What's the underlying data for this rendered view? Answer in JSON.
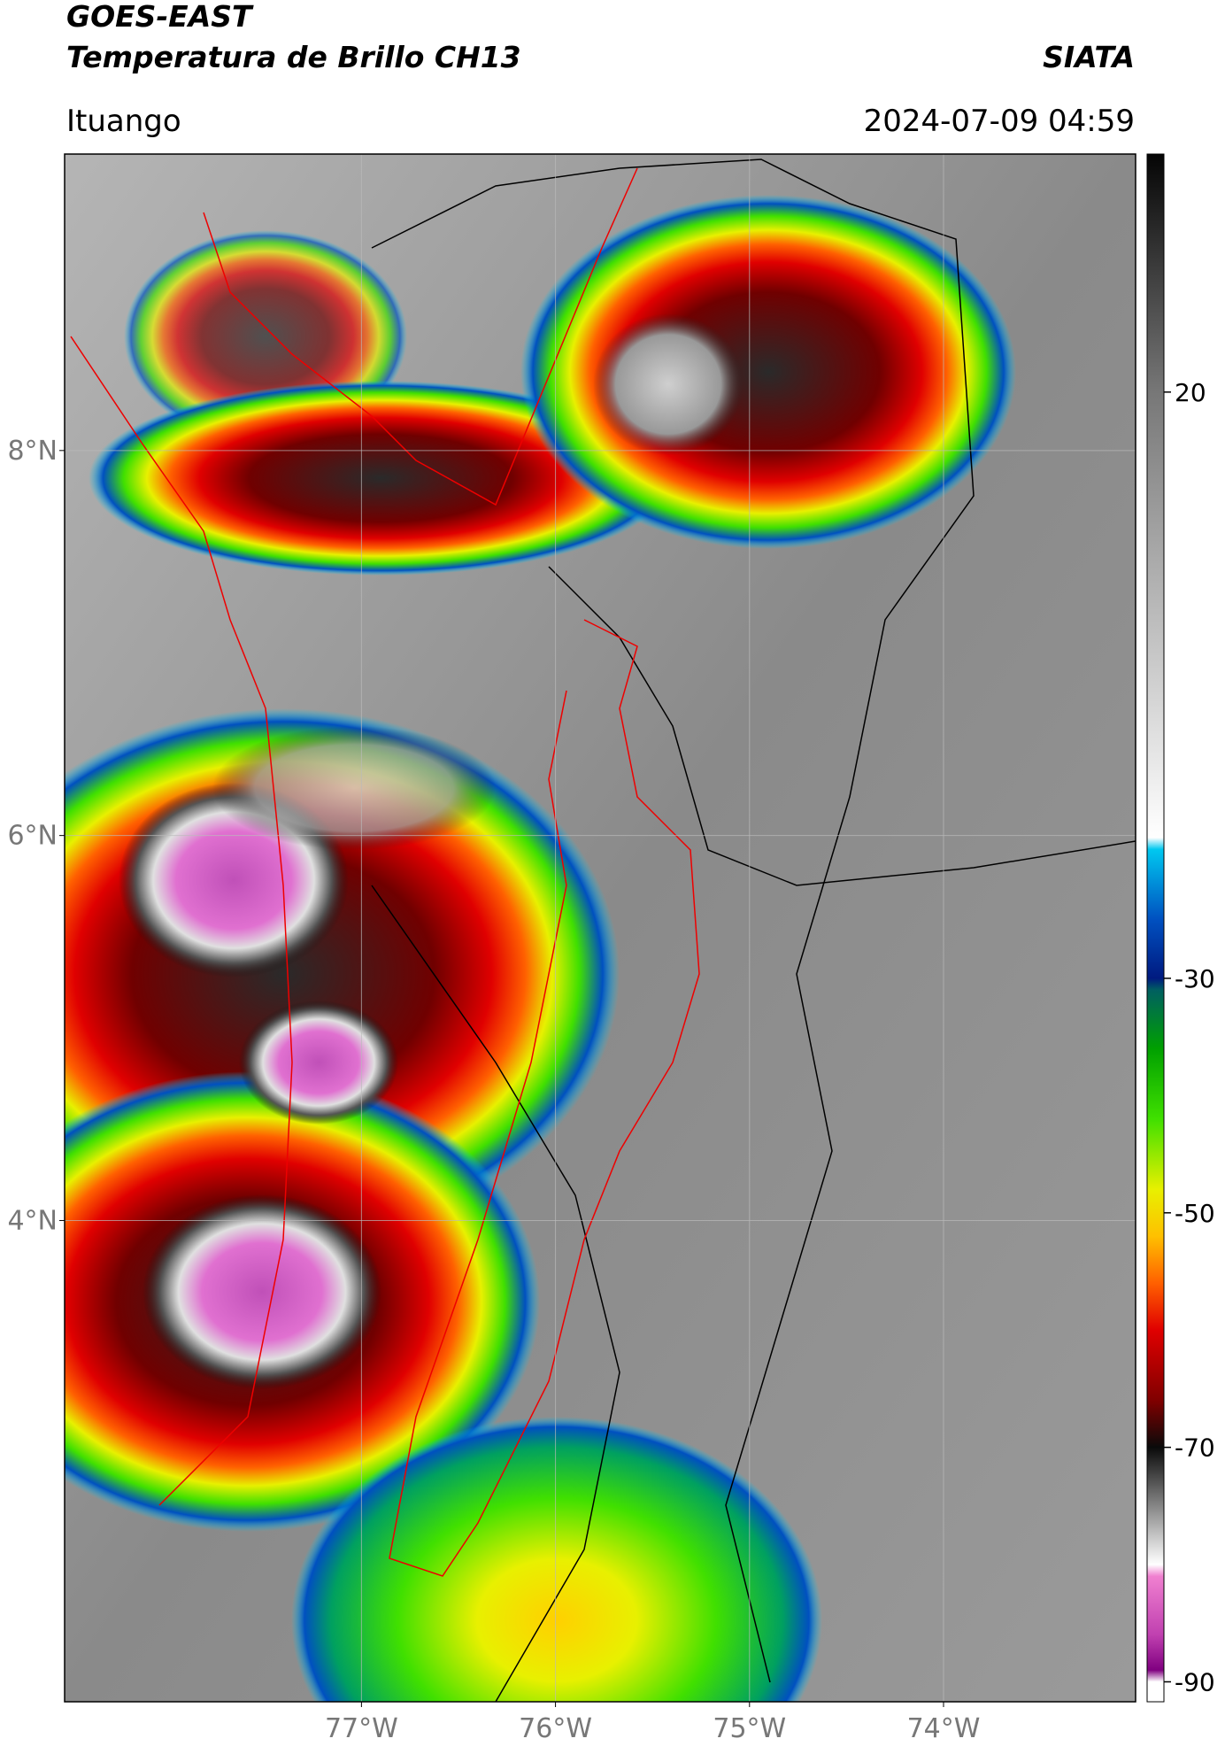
{
  "header": {
    "title": "GOES-EAST",
    "subtitle": "Temperatura de Brillo CH13",
    "source": "SIATA",
    "location": "Ituango",
    "datetime": "2024-07-09 04:59"
  },
  "map": {
    "lon_range": [
      -78.53,
      -73.01
    ],
    "lat_range": [
      1.5,
      9.54
    ],
    "lat_ticks": [
      {
        "value": 8,
        "label": "8°N"
      },
      {
        "value": 6,
        "label": "6°N"
      },
      {
        "value": 4,
        "label": "4°N"
      }
    ],
    "lon_ticks": [
      {
        "value": -77,
        "label": "77°W"
      },
      {
        "value": -76,
        "label": "76°W"
      },
      {
        "value": -75,
        "label": "75°W"
      },
      {
        "value": -74,
        "label": "74°W"
      }
    ],
    "grid": true
  },
  "colorbar": {
    "range": [
      -91.7,
      40.3
    ],
    "ticks": [
      20,
      -30,
      -50,
      -70,
      -90
    ],
    "colormap": [
      {
        "value": 40.3,
        "color": "#050505"
      },
      {
        "value": 20,
        "color": "#777777"
      },
      {
        "value": -18,
        "color": "#ffffff"
      },
      {
        "value": -19,
        "color": "#00c8f0"
      },
      {
        "value": -25,
        "color": "#0050c0"
      },
      {
        "value": -30,
        "color": "#001a80"
      },
      {
        "value": -31,
        "color": "#006060"
      },
      {
        "value": -36,
        "color": "#00a000"
      },
      {
        "value": -42,
        "color": "#40e000"
      },
      {
        "value": -48,
        "color": "#e8f000"
      },
      {
        "value": -52,
        "color": "#ffc000"
      },
      {
        "value": -56,
        "color": "#ff6000"
      },
      {
        "value": -60,
        "color": "#e00000"
      },
      {
        "value": -66,
        "color": "#800000"
      },
      {
        "value": -70,
        "color": "#0a0a0a"
      },
      {
        "value": -78,
        "color": "#d0d0d0"
      },
      {
        "value": -80,
        "color": "#ffffff"
      },
      {
        "value": -81,
        "color": "#f080d0"
      },
      {
        "value": -86,
        "color": "#c040b0"
      },
      {
        "value": -89,
        "color": "#800080"
      },
      {
        "value": -90,
        "color": "#ffffff"
      },
      {
        "value": -91.7,
        "color": "#ffffff"
      }
    ]
  }
}
